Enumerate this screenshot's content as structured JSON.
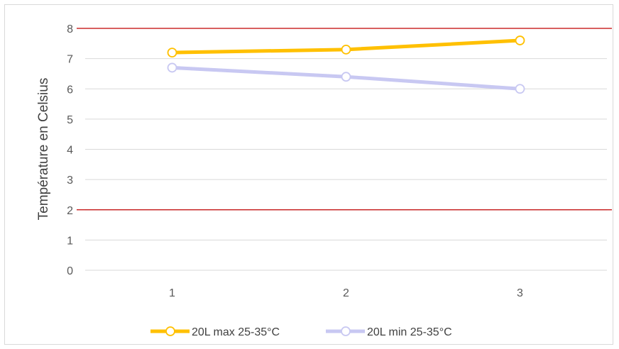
{
  "chart_data": {
    "type": "line",
    "title": "",
    "xlabel": "",
    "ylabel": "Température en Celsius",
    "categories": [
      "1",
      "2",
      "3"
    ],
    "ylim": [
      0,
      8
    ],
    "yticks": [
      "0",
      "1",
      "2",
      "3",
      "4",
      "5",
      "6",
      "7",
      "8"
    ],
    "grid": true,
    "legend_position": "bottom",
    "series": [
      {
        "name": "20L max 25-35°C",
        "values": [
          7.2,
          7.3,
          7.6
        ],
        "color": "#ffc000"
      },
      {
        "name": "20L min 25-35°C",
        "values": [
          6.7,
          6.4,
          6.0
        ],
        "color": "#c8c8f2"
      }
    ],
    "reference_lines": [
      {
        "value": 8,
        "color": "#c00000"
      },
      {
        "value": 2,
        "color": "#c00000"
      }
    ]
  }
}
